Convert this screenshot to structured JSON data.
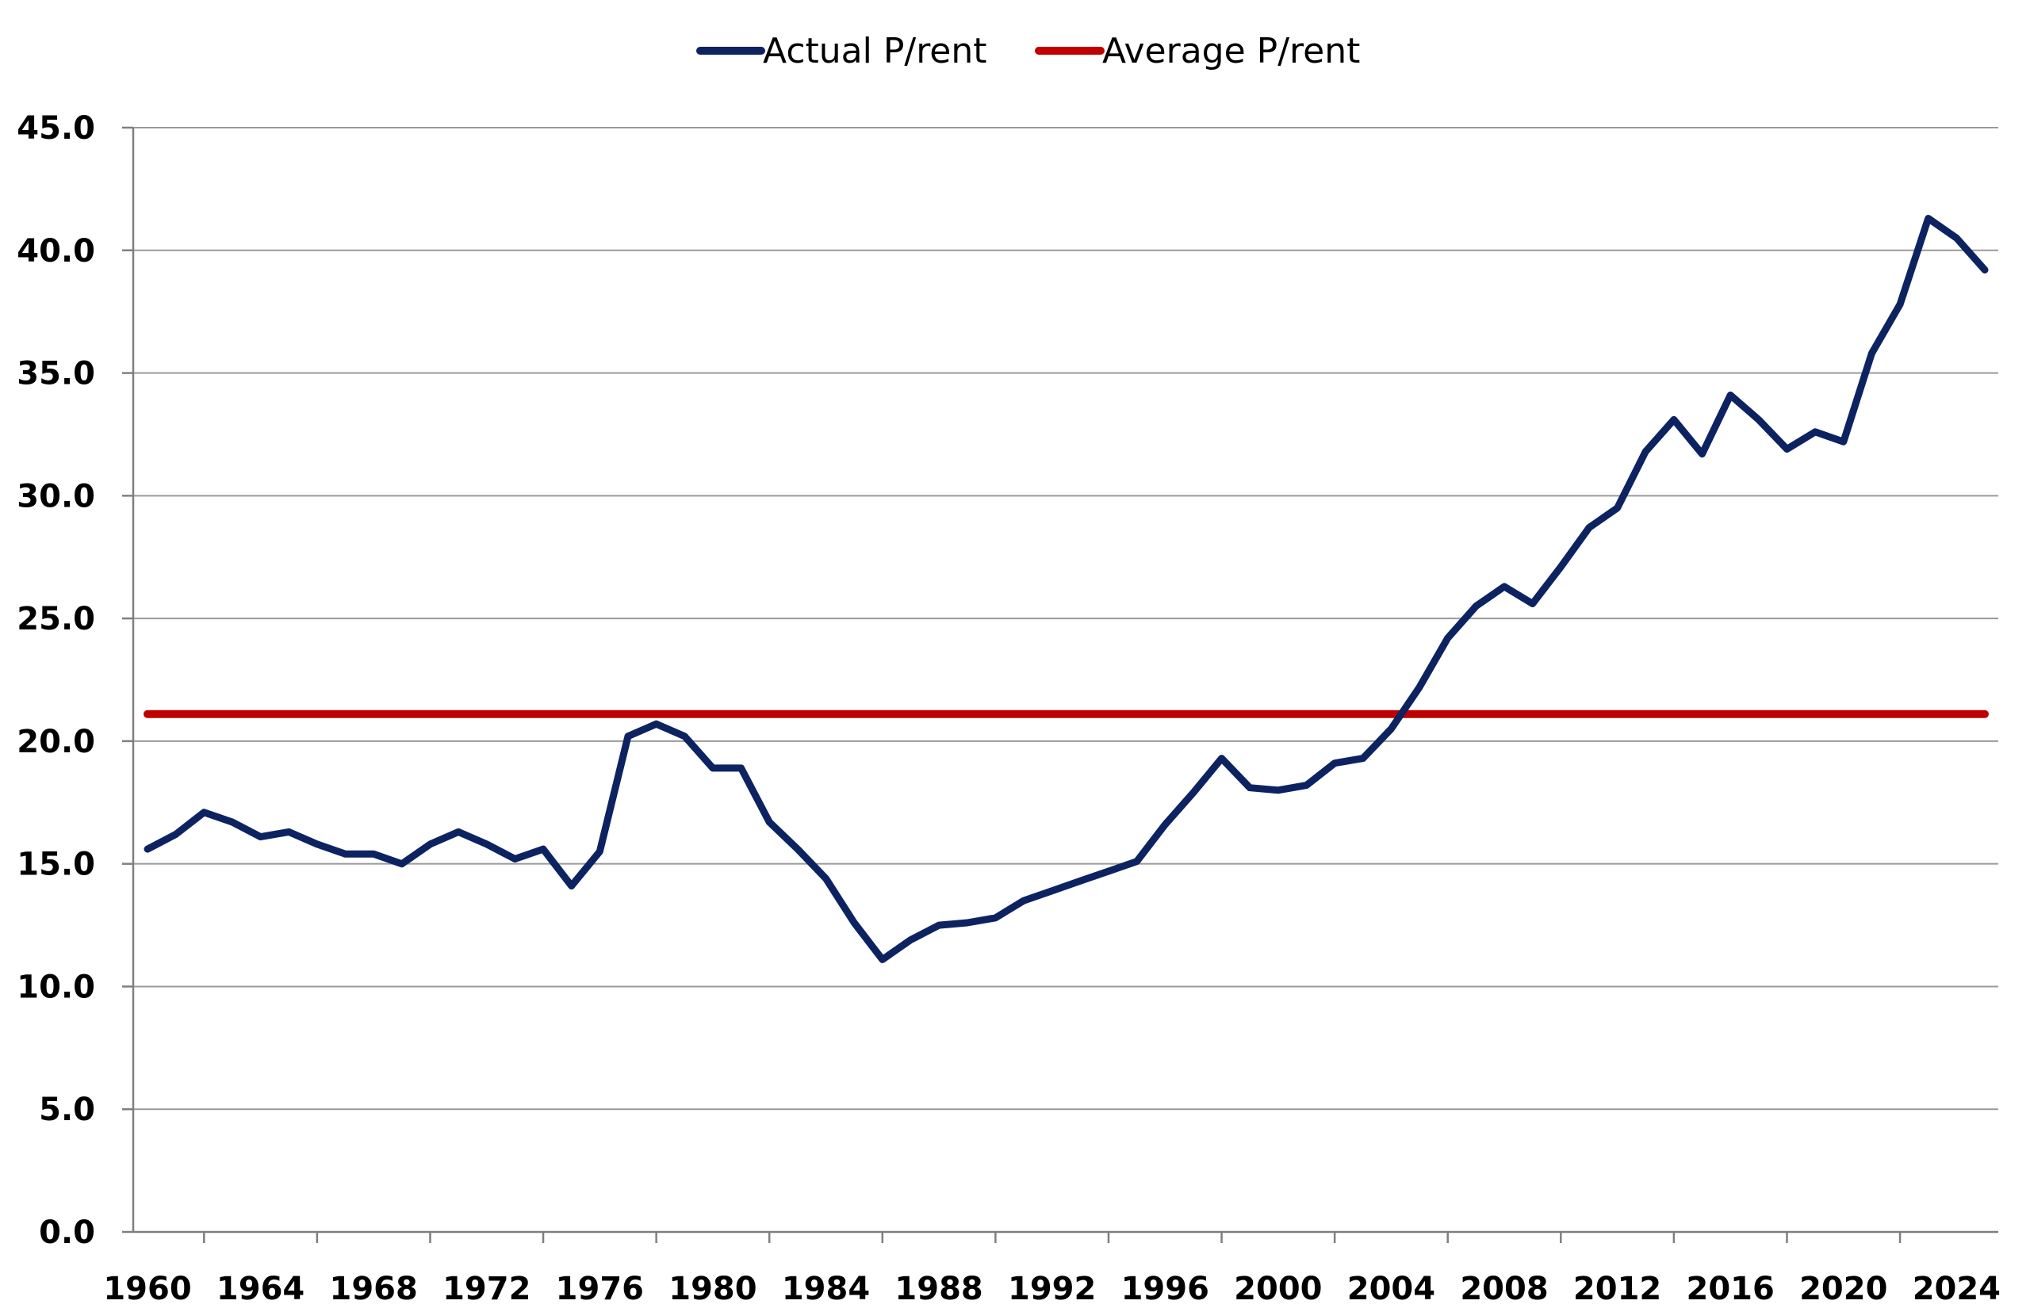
{
  "chart_data": {
    "type": "line",
    "title": "",
    "xlabel": "",
    "ylabel": "",
    "xlim": [
      1960,
      2025
    ],
    "ylim": [
      0,
      45
    ],
    "y_ticks": [
      "0.0",
      "5.0",
      "10.0",
      "15.0",
      "20.0",
      "25.0",
      "30.0",
      "35.0",
      "40.0",
      "45.0"
    ],
    "x_ticks": [
      "1960",
      "1964",
      "1968",
      "1972",
      "1976",
      "1980",
      "1984",
      "1988",
      "1992",
      "1996",
      "2000",
      "2004",
      "2008",
      "2012",
      "2016",
      "2020",
      "2024"
    ],
    "grid": "horizontal",
    "legend_position": "top-center",
    "series": [
      {
        "name": "Actual P/rent",
        "color": "#0d2361",
        "x": [
          1960,
          1961,
          1962,
          1963,
          1964,
          1965,
          1966,
          1967,
          1968,
          1969,
          1970,
          1971,
          1972,
          1973,
          1974,
          1975,
          1976,
          1977,
          1978,
          1979,
          1980,
          1981,
          1982,
          1983,
          1984,
          1985,
          1986,
          1987,
          1988,
          1989,
          1990,
          1991,
          1992,
          1993,
          1994,
          1995,
          1996,
          1997,
          1998,
          1999,
          2000,
          2001,
          2002,
          2003,
          2004,
          2005,
          2006,
          2007,
          2008,
          2009,
          2010,
          2011,
          2012,
          2013,
          2014,
          2015,
          2016,
          2017,
          2018,
          2019,
          2020,
          2021,
          2022,
          2023,
          2024,
          2025
        ],
        "values": [
          15.6,
          16.2,
          17.1,
          16.7,
          16.1,
          16.3,
          15.8,
          15.4,
          15.4,
          15.0,
          15.8,
          16.3,
          15.8,
          15.2,
          15.6,
          14.1,
          15.5,
          20.2,
          20.7,
          20.2,
          18.9,
          18.9,
          16.7,
          15.6,
          14.4,
          12.6,
          11.1,
          11.9,
          12.5,
          12.6,
          12.8,
          13.5,
          13.9,
          14.3,
          14.7,
          15.1,
          16.6,
          17.9,
          19.3,
          18.1,
          18.0,
          18.2,
          19.1,
          19.3,
          20.5,
          22.2,
          24.2,
          25.5,
          26.3,
          25.6,
          27.1,
          28.7,
          29.5,
          31.8,
          33.1,
          31.7,
          34.1,
          33.1,
          31.9,
          32.6,
          32.2,
          35.8,
          37.8,
          41.3,
          40.5,
          39.2
        ]
      },
      {
        "name": "Average P/rent",
        "color": "#c00000",
        "x": [
          1960,
          2025
        ],
        "values": [
          21.1,
          21.1
        ]
      }
    ]
  }
}
